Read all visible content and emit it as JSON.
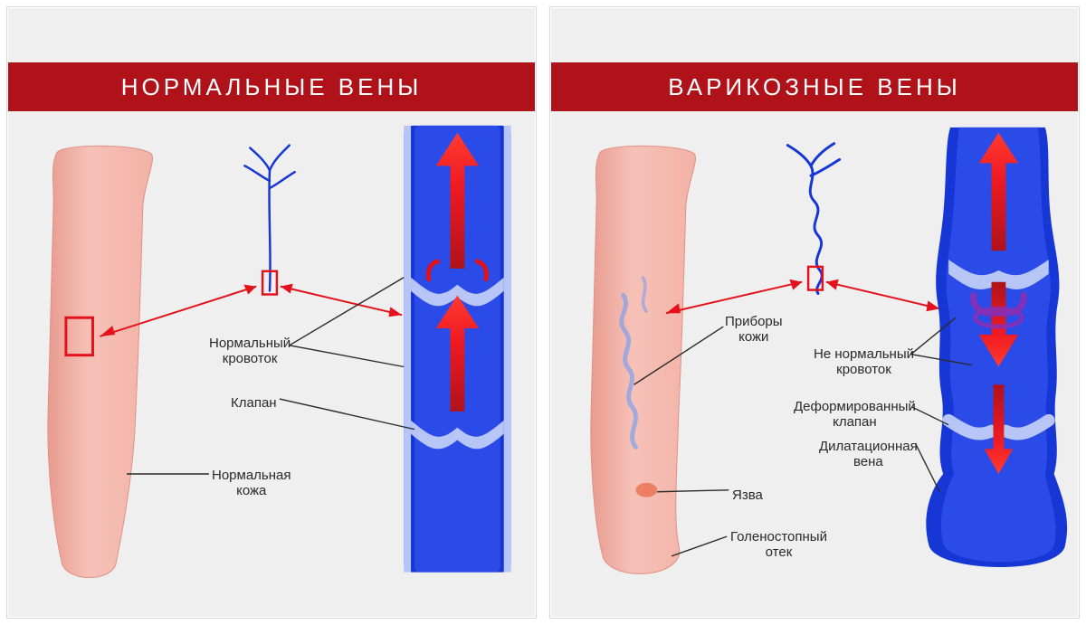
{
  "left": {
    "title": "НОРМАЛЬНЫЕ ВЕНЫ",
    "labels": {
      "blood_flow": "Нормальный\nкровоток",
      "valve": "Клапан",
      "skin": "Нормальная\nкожа"
    }
  },
  "right": {
    "title": "ВАРИКОЗНЫЕ ВЕНЫ",
    "labels": {
      "skin_devices": "Приборы\nкожи",
      "blood_flow": "Не нормальный\nкровоток",
      "deformed_valve": "Деформированный\nклапан",
      "dilated_vein": "Дилатационная\nвена",
      "ulcer": "Язва",
      "ankle_edema": "Голеностопный\nотек"
    }
  },
  "colors": {
    "title_bg": "#b0121a",
    "vein_blue": "#1636d6",
    "vein_inner": "#b7c6f6",
    "skin": "#f4b6ac",
    "skin_shadow": "#e09187",
    "arrow_red": "#e4111a",
    "arrow_red_dark": "#b0121a",
    "line": "#2a2a2a",
    "panel_bg": "#efeff0"
  }
}
